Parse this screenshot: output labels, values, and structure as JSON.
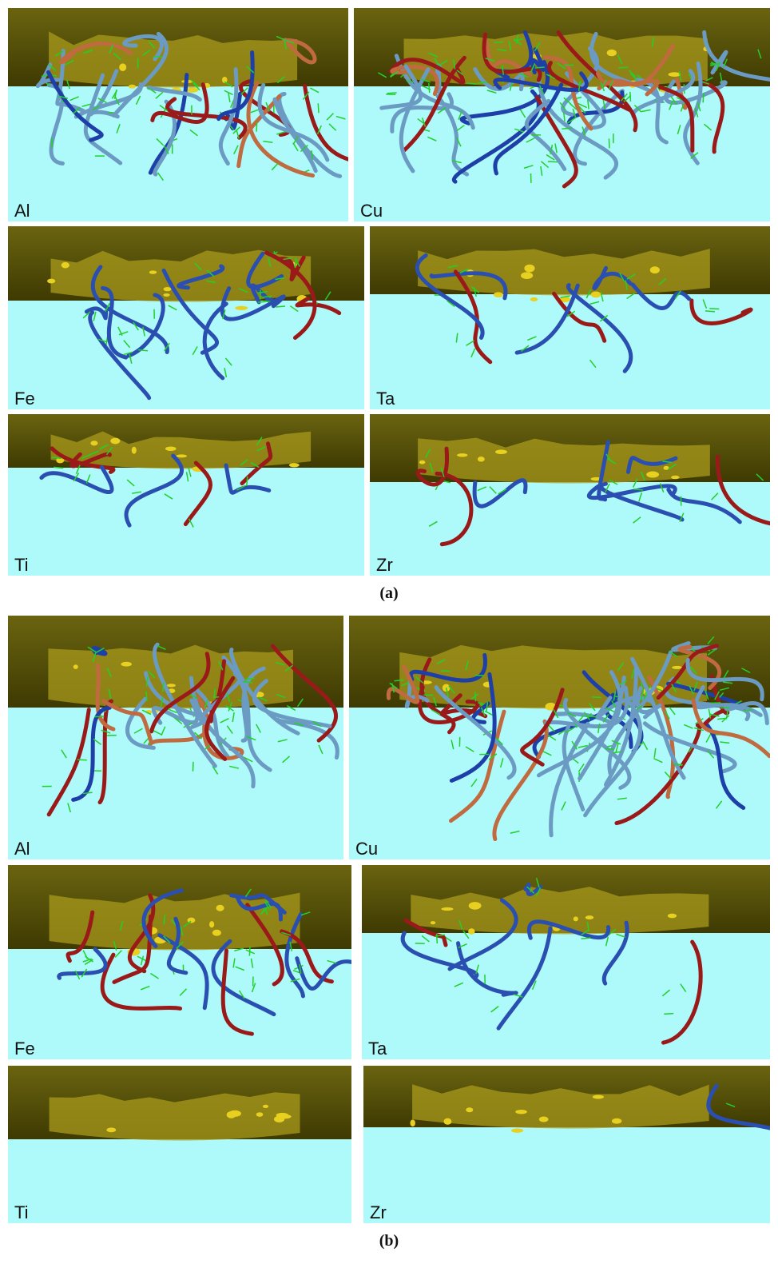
{
  "figure": {
    "parts": [
      {
        "caption": "(a)",
        "panels": [
          {
            "label": "Al"
          },
          {
            "label": "Cu"
          },
          {
            "label": "Fe"
          },
          {
            "label": "Ta"
          },
          {
            "label": "Ti"
          },
          {
            "label": "Zr"
          }
        ]
      },
      {
        "caption": "(b)",
        "panels": [
          {
            "label": "Al"
          },
          {
            "label": "Cu"
          },
          {
            "label": "Fe"
          },
          {
            "label": "Ta"
          },
          {
            "label": "Ti"
          },
          {
            "label": "Zr"
          }
        ]
      }
    ]
  }
}
